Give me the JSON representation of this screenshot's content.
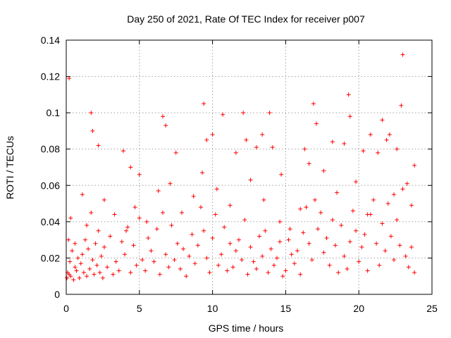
{
  "chart_data": {
    "type": "scatter",
    "title": "Day 250 of 2021, Rate Of TEC Index for receiver p007",
    "xlabel": "GPS time / hours",
    "ylabel": "ROTI / TECUs",
    "xlim": [
      0,
      25
    ],
    "ylim": [
      0,
      0.14
    ],
    "xticks": [
      0,
      5,
      10,
      15,
      20,
      25
    ],
    "xtick_labels": [
      "0",
      "5",
      "10",
      "15",
      "20",
      "25"
    ],
    "yticks": [
      0,
      0.02,
      0.04,
      0.06,
      0.08,
      0.1,
      0.12,
      0.14
    ],
    "ytick_labels": [
      "0",
      "0.02",
      "0.04",
      "0.06",
      "0.08",
      "0.1",
      "0.12",
      "0.14"
    ],
    "grid": true,
    "marker": "plus",
    "color": "#ff0000",
    "series": [
      {
        "x": [
          0.05,
          0.1,
          0.15,
          0.2,
          0.25,
          0.3,
          0.4,
          0.5,
          0.6,
          0.7,
          0.8,
          0.9,
          1.0,
          1.1,
          1.2,
          1.3,
          1.4,
          1.5,
          1.6,
          1.7,
          1.8,
          1.9,
          2.0,
          2.1,
          2.2,
          2.3,
          2.4,
          2.5,
          2.6,
          2.8,
          3.0,
          3.2,
          3.4,
          3.6,
          3.8,
          4.0,
          4.2,
          4.4,
          4.6,
          4.8,
          5.0,
          5.2,
          5.4,
          5.6,
          5.8,
          6.0,
          6.2,
          6.4,
          6.6,
          6.8,
          7.0,
          7.2,
          7.4,
          7.6,
          7.8,
          8.0,
          8.2,
          8.4,
          8.6,
          8.8,
          9.0,
          9.2,
          9.4,
          9.6,
          9.8,
          10.0,
          10.2,
          10.4,
          10.6,
          10.8,
          11.0,
          11.2,
          11.4,
          11.6,
          11.8,
          12.0,
          12.2,
          12.4,
          12.6,
          12.8,
          13.0,
          13.2,
          13.4,
          13.6,
          13.8,
          14.0,
          14.2,
          14.4,
          14.6,
          14.8,
          15.0,
          15.2,
          15.4,
          15.6,
          15.8,
          16.0,
          16.2,
          16.4,
          16.6,
          16.8,
          17.0,
          17.2,
          17.4,
          17.6,
          17.8,
          18.0,
          18.2,
          18.4,
          18.6,
          18.8,
          19.0,
          19.2,
          19.4,
          19.6,
          19.8,
          20.0,
          20.2,
          20.4,
          20.6,
          20.8,
          21.0,
          21.2,
          21.4,
          21.6,
          21.8,
          22.0,
          22.2,
          22.4,
          22.6,
          22.8,
          23.0,
          23.2,
          23.4,
          23.6,
          23.8,
          0.2,
          1.7,
          1.8,
          2.2,
          3.9,
          4.4,
          5.0,
          6.6,
          6.8,
          7.5,
          9.4,
          9.6,
          10.0,
          10.7,
          11.6,
          12.1,
          12.3,
          13.0,
          13.4,
          13.9,
          14.1,
          14.7,
          16.3,
          16.9,
          17.1,
          18.2,
          19.0,
          19.3,
          19.4,
          20.3,
          20.8,
          21.6,
          21.9,
          22.1,
          22.6,
          22.9,
          23.0,
          23.8,
          0.3,
          0.6,
          1.1,
          1.4,
          2.6,
          3.3,
          4.1,
          4.7,
          5.5,
          6.3,
          7.1,
          7.9,
          8.7,
          9.3,
          10.3,
          11.2,
          12.6,
          13.5,
          14.6,
          15.3,
          16.0,
          16.6,
          17.6,
          18.5,
          19.8,
          20.6,
          21.3,
          22.4,
          23.3,
          23.6
        ],
        "y": [
          0.009,
          0.012,
          0.03,
          0.011,
          0.018,
          0.01,
          0.024,
          0.008,
          0.015,
          0.013,
          0.02,
          0.009,
          0.017,
          0.022,
          0.012,
          0.03,
          0.01,
          0.025,
          0.014,
          0.045,
          0.019,
          0.011,
          0.028,
          0.016,
          0.035,
          0.012,
          0.021,
          0.009,
          0.026,
          0.015,
          0.032,
          0.011,
          0.018,
          0.013,
          0.029,
          0.022,
          0.037,
          0.012,
          0.027,
          0.016,
          0.042,
          0.019,
          0.013,
          0.031,
          0.024,
          0.018,
          0.036,
          0.011,
          0.045,
          0.022,
          0.015,
          0.038,
          0.019,
          0.028,
          0.014,
          0.025,
          0.01,
          0.021,
          0.033,
          0.017,
          0.027,
          0.048,
          0.035,
          0.02,
          0.012,
          0.031,
          0.044,
          0.016,
          0.022,
          0.037,
          0.013,
          0.028,
          0.015,
          0.024,
          0.03,
          0.019,
          0.041,
          0.011,
          0.026,
          0.018,
          0.014,
          0.032,
          0.021,
          0.035,
          0.012,
          0.025,
          0.016,
          0.02,
          0.029,
          0.01,
          0.013,
          0.03,
          0.022,
          0.017,
          0.024,
          0.011,
          0.034,
          0.048,
          0.028,
          0.019,
          0.052,
          0.036,
          0.045,
          0.023,
          0.031,
          0.016,
          0.041,
          0.027,
          0.012,
          0.038,
          0.021,
          0.014,
          0.029,
          0.046,
          0.035,
          0.018,
          0.026,
          0.033,
          0.013,
          0.044,
          0.052,
          0.028,
          0.016,
          0.039,
          0.024,
          0.05,
          0.032,
          0.019,
          0.041,
          0.027,
          0.058,
          0.021,
          0.015,
          0.026,
          0.012,
          0.119,
          0.1,
          0.09,
          0.082,
          0.079,
          0.07,
          0.066,
          0.098,
          0.093,
          0.078,
          0.105,
          0.085,
          0.088,
          0.099,
          0.078,
          0.1,
          0.085,
          0.081,
          0.088,
          0.1,
          0.081,
          0.066,
          0.08,
          0.105,
          0.094,
          0.084,
          0.083,
          0.11,
          0.098,
          0.079,
          0.088,
          0.096,
          0.085,
          0.088,
          0.08,
          0.104,
          0.132,
          0.071,
          0.042,
          0.028,
          0.055,
          0.038,
          0.052,
          0.044,
          0.035,
          0.048,
          0.04,
          0.057,
          0.061,
          0.045,
          0.054,
          0.067,
          0.058,
          0.049,
          0.063,
          0.052,
          0.04,
          0.036,
          0.047,
          0.072,
          0.068,
          0.056,
          0.062,
          0.044,
          0.078,
          0.055,
          0.061,
          0.049
        ]
      }
    ]
  }
}
